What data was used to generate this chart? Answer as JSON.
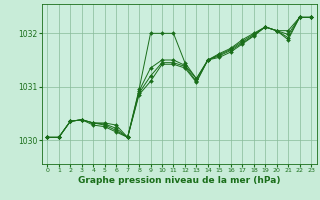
{
  "background_color": "#c8ecd8",
  "plot_bg_color": "#cceedd",
  "grid_color": "#88bb99",
  "line_color": "#1a6e1a",
  "marker_color": "#1a6e1a",
  "xlabel": "Graphe pression niveau de la mer (hPa)",
  "xlabel_fontsize": 6.5,
  "yticks": [
    1030,
    1031,
    1032
  ],
  "xticks": [
    0,
    1,
    2,
    3,
    4,
    5,
    6,
    7,
    8,
    9,
    10,
    11,
    12,
    13,
    14,
    15,
    16,
    17,
    18,
    19,
    20,
    21,
    22,
    23
  ],
  "xlim": [
    -0.5,
    23.5
  ],
  "ylim": [
    1029.55,
    1032.55
  ],
  "series": [
    {
      "x": [
        0,
        1,
        2,
        3,
        4,
        5,
        6,
        7,
        8,
        9,
        10,
        11,
        12,
        13,
        14,
        15,
        16,
        17,
        18,
        19,
        20,
        21,
        22,
        23
      ],
      "y": [
        1030.05,
        1030.05,
        1030.35,
        1030.38,
        1030.32,
        1030.32,
        1030.28,
        1030.05,
        1030.95,
        1032.0,
        1032.0,
        1032.0,
        1031.45,
        1031.15,
        1031.5,
        1031.62,
        1031.72,
        1031.88,
        1032.0,
        1032.12,
        1032.05,
        1032.05,
        1032.3,
        1032.3
      ]
    },
    {
      "x": [
        0,
        1,
        2,
        3,
        4,
        5,
        6,
        7,
        8,
        9,
        10,
        11,
        12,
        13,
        14,
        15,
        16,
        17,
        18,
        19,
        20,
        21,
        22,
        23
      ],
      "y": [
        1030.05,
        1030.05,
        1030.35,
        1030.38,
        1030.32,
        1030.3,
        1030.22,
        1030.05,
        1030.92,
        1031.35,
        1031.5,
        1031.5,
        1031.4,
        1031.15,
        1031.5,
        1031.6,
        1031.7,
        1031.85,
        1031.98,
        1032.12,
        1032.05,
        1031.98,
        1032.3,
        1032.3
      ]
    },
    {
      "x": [
        0,
        1,
        2,
        3,
        4,
        5,
        6,
        7,
        8,
        9,
        10,
        11,
        12,
        13,
        14,
        15,
        16,
        17,
        18,
        19,
        20,
        21,
        22,
        23
      ],
      "y": [
        1030.05,
        1030.05,
        1030.35,
        1030.38,
        1030.32,
        1030.28,
        1030.18,
        1030.05,
        1030.88,
        1031.2,
        1031.45,
        1031.45,
        1031.38,
        1031.1,
        1031.5,
        1031.58,
        1031.68,
        1031.82,
        1031.96,
        1032.12,
        1032.05,
        1031.92,
        1032.3,
        1032.3
      ]
    },
    {
      "x": [
        0,
        1,
        2,
        3,
        4,
        5,
        6,
        7,
        8,
        9,
        10,
        11,
        12,
        13,
        14,
        15,
        16,
        17,
        18,
        19,
        20,
        21,
        22,
        23
      ],
      "y": [
        1030.05,
        1030.05,
        1030.35,
        1030.38,
        1030.28,
        1030.25,
        1030.15,
        1030.05,
        1030.85,
        1031.1,
        1031.42,
        1031.42,
        1031.35,
        1031.08,
        1031.5,
        1031.55,
        1031.65,
        1031.8,
        1031.95,
        1032.12,
        1032.05,
        1031.88,
        1032.3,
        1032.3
      ]
    }
  ]
}
